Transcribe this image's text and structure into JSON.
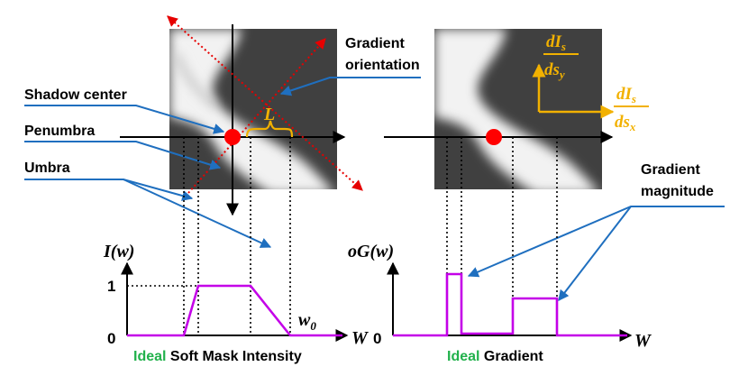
{
  "labels": {
    "gradient_orientation_line1": "Gradient",
    "gradient_orientation_line2": "orientation",
    "shadow_center": "Shadow center",
    "penumbra": "Penumbra",
    "umbra": "Umbra",
    "gradient_magnitude_line1": "Gradient",
    "gradient_magnitude_line2": "magnitude",
    "L": "L",
    "dIs": "dI",
    "dIs_sub": "s",
    "dsy": "ds",
    "dsy_sub": "y",
    "dsx": "ds",
    "dsx_sub": "x"
  },
  "left_plot": {
    "ylabel": "I(w)",
    "tick_one": "1",
    "tick_zero": "0",
    "w0": "w",
    "w0_sub": "0",
    "xlabel": "W",
    "caption_green": "Ideal",
    "caption_rest": " Soft Mask Intensity"
  },
  "right_plot": {
    "ylabel": "oG(w)",
    "tick_zero": "0",
    "xlabel": "W",
    "caption_green": "Ideal",
    "caption_rest": " Gradient"
  },
  "colors": {
    "pointer_lines": "#1f6fbf",
    "curve": "#c400e8",
    "dot": "#ff0000",
    "dotted_red": "#e60000",
    "gold": "#f2b100",
    "green": "#22b14c",
    "image_bg": "#404040"
  }
}
